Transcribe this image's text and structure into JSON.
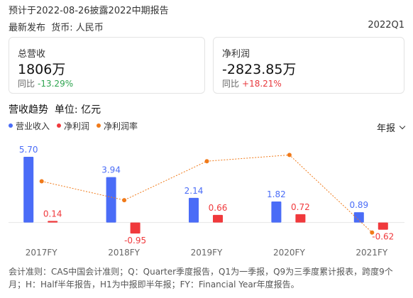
{
  "header": {
    "notice": "预计于2022-08-26披露2022中期报告",
    "release": "最新发布",
    "currency": "货币: 人民币",
    "period": "2022Q1"
  },
  "cards": [
    {
      "label": "总营收",
      "value": "1806万",
      "yoy_label": "同比",
      "yoy": "-13.29%",
      "direction": "down"
    },
    {
      "label": "净利润",
      "value": "-2823.85万",
      "yoy_label": "同比",
      "yoy": "+18.21%",
      "direction": "up"
    }
  ],
  "section": {
    "title": "营收趋势",
    "unit": "单位: 亿元"
  },
  "period_select": {
    "value": "年报"
  },
  "footnote": "会计准则：CAS中国会计准则；Q：Quarter季度报告，Q1为一季报，Q9为三季度累计报表，跨度9个月；H：Half半年报告，H1为中报即半年报；FY：Financial Year年度报告。",
  "colors": {
    "revenue": "#4a6cf7",
    "profit": "#f0393c",
    "margin": "#f07a1a"
  },
  "chart_data": {
    "type": "bar",
    "categories": [
      "2017FY",
      "2018FY",
      "2019FY",
      "2020FY",
      "2021FY"
    ],
    "series": [
      {
        "name": "营业收入",
        "type": "bar",
        "values": [
          5.7,
          3.94,
          2.14,
          1.82,
          0.89
        ]
      },
      {
        "name": "净利润",
        "type": "bar",
        "values": [
          0.14,
          -0.95,
          0.66,
          0.72,
          -0.62
        ]
      },
      {
        "name": "净利润率",
        "type": "line",
        "values": [
          2.5,
          -24.1,
          30.8,
          39.6,
          -69.7
        ]
      }
    ],
    "value_labels": [
      [
        "5.70",
        "3.94",
        "2.14",
        "1.82",
        "0.89"
      ],
      [
        "0.14",
        "-0.95",
        "0.66",
        "0.72",
        "-0.62"
      ]
    ],
    "bar_ylim": [
      -1.5,
      6.5
    ],
    "line_ylim": [
      -80,
      50
    ],
    "grid": false,
    "legend": "top-left"
  }
}
